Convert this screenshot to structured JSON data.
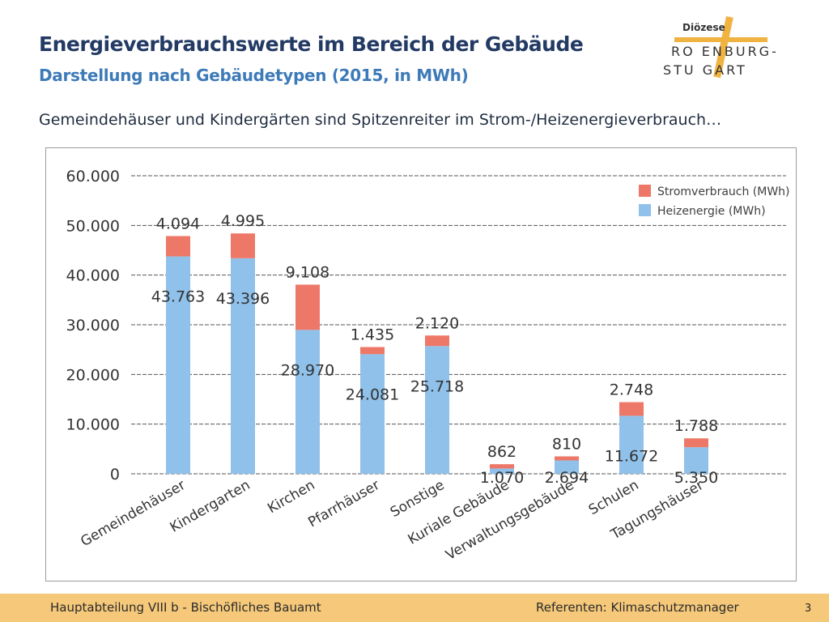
{
  "slide": {
    "title": "Energieverbrauchswerte im Bereich der Gebäude",
    "subtitle": "Darstellung nach Gebäudetypen (2015, in MWh)",
    "subheading": "Gemeindehäuser und Kindergärten sind Spitzenreiter im Strom-/Heizenergieverbrauch…"
  },
  "logo": {
    "line1": "Diözese",
    "line2": "RO ENBURG-",
    "line3": "STU GART",
    "cross_color": "#f0b341"
  },
  "footer": {
    "left": "Hauptabteilung VIII b - Bischöfliches Bauamt",
    "right": "Referenten: Klimaschutzmanager",
    "page": "3"
  },
  "colors": {
    "heat": "#8fc1ea",
    "power": "#ee7867",
    "footer_bg": "#f5c87a"
  },
  "chart_data": {
    "type": "bar",
    "stacked": true,
    "categories": [
      "Gemeindehäuser",
      "Kindergarten",
      "Kirchen",
      "Pfarrhäuser",
      "Sonstige",
      "Kuriale Gebäude",
      "Verwaltungsgebäude",
      "Schulen",
      "Tagungshäuser"
    ],
    "series": [
      {
        "name": "Heizenergie (MWh)",
        "values": [
          43763,
          43396,
          28970,
          24081,
          25718,
          1070,
          2694,
          11672,
          5350
        ],
        "labels": [
          "43.763",
          "43.396",
          "28.970",
          "24.081",
          "25.718",
          "1.070",
          "2.694",
          "11.672",
          "5.350"
        ]
      },
      {
        "name": "Stromverbrauch (MWh)",
        "values": [
          4094,
          4995,
          9108,
          1435,
          2120,
          862,
          810,
          2748,
          1788
        ],
        "labels": [
          "4.094",
          "4.995",
          "9.108",
          "1.435",
          "2.120",
          "862",
          "810",
          "2.748",
          "1.788"
        ]
      }
    ],
    "yticks": [
      "0",
      "10.000",
      "20.000",
      "30.000",
      "40.000",
      "50.000",
      "60.000"
    ],
    "ylim": [
      0,
      60000
    ],
    "ytick_step": 10000,
    "grid": true,
    "gridline_style": "dashed",
    "legend_position": "top-right"
  }
}
